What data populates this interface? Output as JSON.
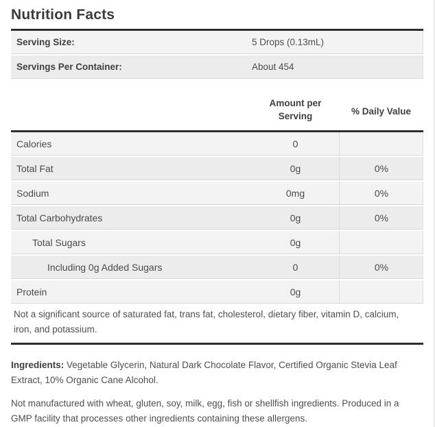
{
  "title": "Nutrition Facts",
  "serving_info": [
    {
      "label": "Serving Size:",
      "value": "5 Drops (0.13mL)"
    },
    {
      "label": "Servings Per Container:",
      "value": "About 454"
    }
  ],
  "table": {
    "col_amount_line1": "Amount per",
    "col_amount_line2": "Serving",
    "col_daily": "% Daily Value",
    "rows": [
      {
        "label": "Calories",
        "amount": "0",
        "daily": ""
      },
      {
        "label": "Total Fat",
        "amount": "0g",
        "daily": "0%"
      },
      {
        "label": "Sodium",
        "amount": "0mg",
        "daily": "0%"
      },
      {
        "label": "Total Carbohydrates",
        "amount": "0g",
        "daily": "0%"
      },
      {
        "label": "Total Sugars",
        "amount": "0g",
        "daily": ""
      },
      {
        "label": "Including 0g Added Sugars",
        "amount": "0",
        "daily": "0%"
      },
      {
        "label": "Protein",
        "amount": "0g",
        "daily": ""
      }
    ]
  },
  "footnote": "Not a significant source of saturated fat, trans fat, cholesterol, dietary fiber, vitamin D, calcium, iron, and potassium.",
  "ingredients_label": "Ingredients:",
  "ingredients_text": "Vegetable Glycerin, Natural Dark Chocolate Flavor, Certified Organic Stevia Leaf Extract, 10% Organic Cane Alcohol.",
  "allergen_text": "Not manufactured with wheat, gluten, soy, milk, egg, fish or shellfish ingredients. Produced in a GMP facility that processes other ingredients containing these allergens.",
  "colors": {
    "rule_dark": "#2d2d2d",
    "row_light": "#f3f3f3",
    "row_dark": "#ececec",
    "divider": "#d9d9d9",
    "text": "#4d4d4d"
  }
}
